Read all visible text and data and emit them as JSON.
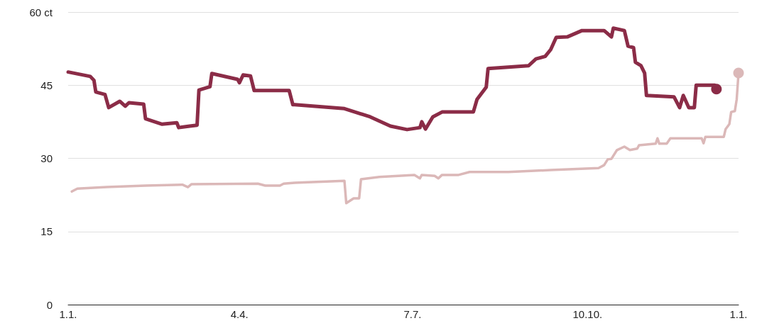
{
  "chart_data": {
    "type": "line",
    "xlim": [
      "--01-01",
      "--12-31"
    ],
    "xticks": [
      {
        "value": "--01-01",
        "label": "1.1."
      },
      {
        "value": "--04-04",
        "label": "4.4."
      },
      {
        "value": "--07-07",
        "label": "7.7."
      },
      {
        "value": "--10-10",
        "label": "10.10."
      },
      {
        "value": "--12-31",
        "label": "1.1."
      }
    ],
    "ylim": [
      0,
      60
    ],
    "yticks": [
      0,
      15,
      30,
      45,
      {
        "value": 60,
        "label": "60 ct"
      }
    ],
    "grid": "y",
    "line_style": "solid",
    "series": [
      {
        "color": "#8b2c47",
        "x": [
          "--01-01",
          "--01-13",
          "--01-15",
          "--01-16",
          "--01-21",
          "--01-23",
          "--01-29",
          "--02-01",
          "--02-03",
          "--02-11",
          "--02-12",
          "--02-21",
          "--03-01",
          "--03-02",
          "--03-08",
          "--03-12",
          "--03-13",
          "--03-19",
          "--03-20",
          "--04-03",
          "--04-04",
          "--04-06",
          "--04-10",
          "--04-12",
          "--05-01",
          "--05-03",
          "--05-04",
          "--05-31",
          "--06-14",
          "--06-25",
          "--07-04",
          "--07-11",
          "--07-12",
          "--07-14",
          "--07-18",
          "--07-23",
          "--08-09",
          "--08-11",
          "--08-16",
          "--08-17",
          "--09-08",
          "--09-12",
          "--09-17",
          "--09-20",
          "--09-23",
          "--09-29",
          "--10-07",
          "--10-19",
          "--10-23",
          "--10-24",
          "--10-30",
          "--11-01",
          "--11-04",
          "--11-05",
          "--11-08",
          "--11-10",
          "--11-11",
          "--11-26",
          "--11-29",
          "--12-01",
          "--12-04",
          "--12-07",
          "--12-08",
          "--12-18",
          "--12-19"
        ],
        "values": [
          47.7,
          46.8,
          46.0,
          43.6,
          43.1,
          40.4,
          41.7,
          40.7,
          41.4,
          41.1,
          38.1,
          37.0,
          37.3,
          36.3,
          36.6,
          36.8,
          44.0,
          44.7,
          47.4,
          46.2,
          45.5,
          47.1,
          46.9,
          43.9,
          43.9,
          41.0,
          41.0,
          40.2,
          38.5,
          36.6,
          35.9,
          36.3,
          37.5,
          36.0,
          38.5,
          39.5,
          39.5,
          42.1,
          44.6,
          48.4,
          49.0,
          50.4,
          50.9,
          52.3,
          54.8,
          54.9,
          56.2,
          56.2,
          54.9,
          56.7,
          56.2,
          53.0,
          52.7,
          49.7,
          49.0,
          47.5,
          42.9,
          42.6,
          40.4,
          42.9,
          40.4,
          40.4,
          45.0,
          45.0,
          44.2
        ]
      },
      {
        "color": "#dbb8b8",
        "x": [
          "--01-03",
          "--01-06",
          "--01-22",
          "--02-12",
          "--03-04",
          "--03-07",
          "--03-09",
          "--04-14",
          "--04-18",
          "--04-26",
          "--04-28",
          "--05-04",
          "--05-31",
          "--06-01",
          "--06-05",
          "--06-08",
          "--06-09",
          "--06-19",
          "--07-08",
          "--07-11",
          "--07-12",
          "--07-19",
          "--07-21",
          "--07-23",
          "--08-01",
          "--08-07",
          "--08-28",
          "--09-20",
          "--10-16",
          "--10-19",
          "--10-21",
          "--10-23",
          "--10-26",
          "--10-30",
          "--11-02",
          "--11-06",
          "--11-07",
          "--11-16",
          "--11-17",
          "--11-18",
          "--11-22",
          "--11-24",
          "--12-11",
          "--12-12",
          "--12-13",
          "--12-23",
          "--12-24",
          "--12-26",
          "--12-27",
          "--12-29",
          "--12-30",
          "--12-31"
        ],
        "values": [
          23.2,
          23.8,
          24.1,
          24.4,
          24.6,
          24.1,
          24.7,
          24.8,
          24.4,
          24.4,
          24.8,
          25.0,
          25.4,
          20.8,
          21.8,
          21.8,
          25.7,
          26.2,
          26.6,
          25.9,
          26.6,
          26.4,
          25.9,
          26.6,
          26.6,
          27.2,
          27.2,
          27.6,
          28.0,
          28.6,
          29.8,
          29.9,
          31.7,
          32.4,
          31.7,
          32.0,
          32.7,
          33.0,
          34.1,
          33.0,
          33.0,
          34.1,
          34.1,
          33.1,
          34.4,
          34.4,
          36.0,
          37.0,
          39.5,
          39.7,
          42.1,
          47.5
        ]
      }
    ]
  }
}
